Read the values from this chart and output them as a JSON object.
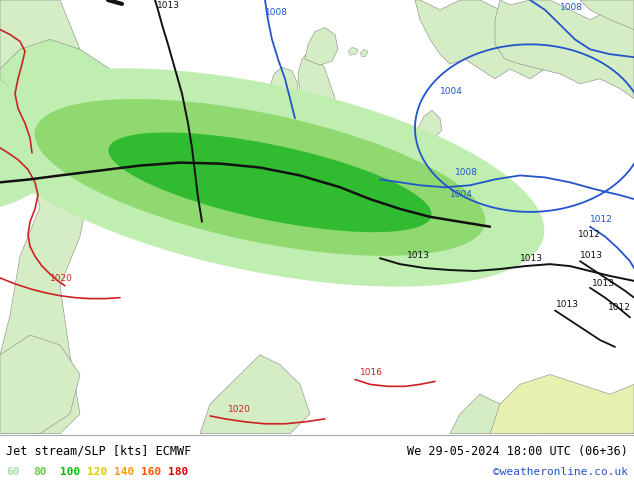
{
  "title_left": "Jet stream/SLP [kts] ECMWF",
  "title_right": "We 29-05-2024 18:00 UTC (06+36)",
  "credit": "©weatheronline.co.uk",
  "legend_values": [
    "60",
    "80",
    "100",
    "120",
    "140",
    "160",
    "180"
  ],
  "legend_colors": [
    "#aaddaa",
    "#66cc44",
    "#00bb00",
    "#ddcc00",
    "#ff9900",
    "#ff5500",
    "#dd0000"
  ],
  "sea_color": "#e8e8e8",
  "land_light": "#d4edc4",
  "land_green_bright": "#b8e8a0",
  "land_bottom_yellow": "#e8f0b0",
  "jet_60_color": "#c0edb0",
  "jet_80_color": "#90d870",
  "jet_100_color": "#30bb30",
  "isobar_blue": "#2255cc",
  "isobar_black": "#111111",
  "isobar_red": "#cc2222",
  "bottom_bg": "#ffffff"
}
